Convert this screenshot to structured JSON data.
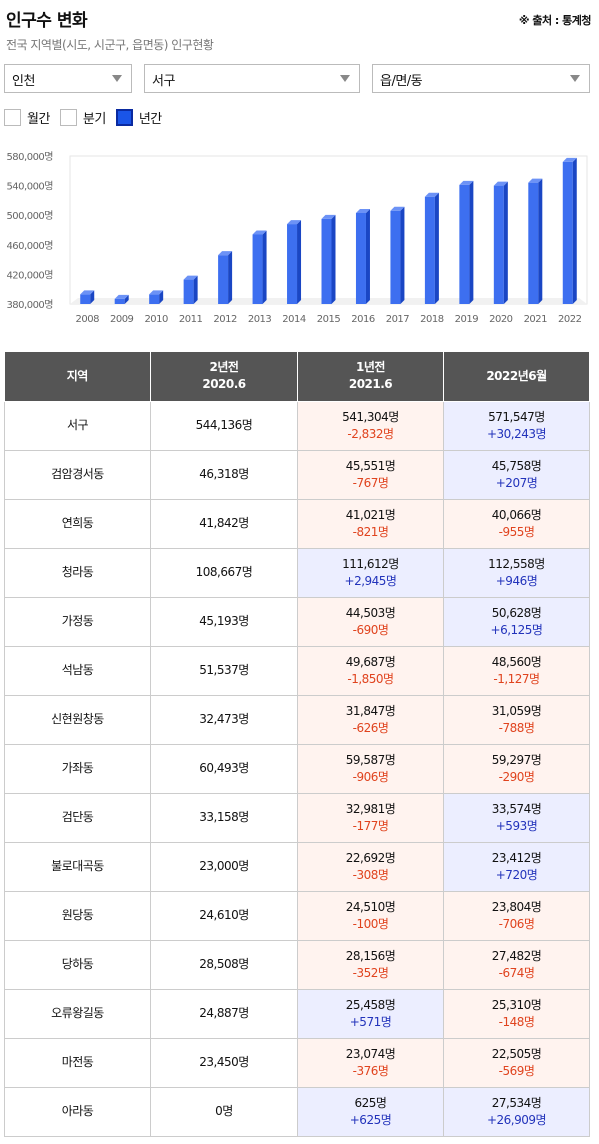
{
  "header": {
    "title": "인구수 변화",
    "source": "※ 출처 : 통계청",
    "subtitle": "전국 지역별(시도, 시군구, 읍면동) 인구현황"
  },
  "filters": {
    "sido": "인천",
    "sigungu": "서구",
    "eupmyeondong": "읍/면/동"
  },
  "period_options": [
    {
      "label": "월간",
      "checked": false
    },
    {
      "label": "분기",
      "checked": false
    },
    {
      "label": "년간",
      "checked": true
    }
  ],
  "colors": {
    "bar": "#3d6ff0",
    "bar_side": "#1a46c4",
    "bar_top": "#6c92f6",
    "decrease_bg": "#fff3ef",
    "increase_bg": "#eceeff",
    "decrease_text": "#e0431e",
    "increase_text": "#2233bb",
    "header_bg": "#555555"
  },
  "chart_data": {
    "type": "bar",
    "categories": [
      "2008",
      "2009",
      "2010",
      "2011",
      "2012",
      "2013",
      "2014",
      "2015",
      "2016",
      "2017",
      "2018",
      "2019",
      "2020",
      "2021",
      "2022"
    ],
    "values": [
      393000,
      387000,
      393000,
      413000,
      446000,
      474000,
      488000,
      495000,
      503000,
      506000,
      525000,
      541000,
      540000,
      544000,
      572000
    ],
    "ylim": [
      380000,
      580000
    ],
    "yticks": [
      "380,000명",
      "420,000명",
      "460,000명",
      "500,000명",
      "540,000명",
      "580,000명"
    ],
    "ytick_values": [
      380000,
      420000,
      460000,
      500000,
      540000,
      580000
    ],
    "grid": false
  },
  "table": {
    "headers": [
      {
        "line1": "지역",
        "line2": ""
      },
      {
        "line1": "2년전",
        "line2": "2020.6"
      },
      {
        "line1": "1년전",
        "line2": "2021.6"
      },
      {
        "line1": "2022년6월",
        "line2": ""
      }
    ],
    "rows": [
      {
        "name": "서구",
        "y2020": "544,136명",
        "y2021": "541,304명",
        "d2021": "-2,832명",
        "t2021": "dec",
        "y2022": "571,547명",
        "d2022": "+30,243명",
        "t2022": "inc"
      },
      {
        "name": "검암경서동",
        "y2020": "46,318명",
        "y2021": "45,551명",
        "d2021": "-767명",
        "t2021": "dec",
        "y2022": "45,758명",
        "d2022": "+207명",
        "t2022": "inc"
      },
      {
        "name": "연희동",
        "y2020": "41,842명",
        "y2021": "41,021명",
        "d2021": "-821명",
        "t2021": "dec",
        "y2022": "40,066명",
        "d2022": "-955명",
        "t2022": "dec"
      },
      {
        "name": "청라동",
        "y2020": "108,667명",
        "y2021": "111,612명",
        "d2021": "+2,945명",
        "t2021": "inc",
        "y2022": "112,558명",
        "d2022": "+946명",
        "t2022": "inc"
      },
      {
        "name": "가정동",
        "y2020": "45,193명",
        "y2021": "44,503명",
        "d2021": "-690명",
        "t2021": "dec",
        "y2022": "50,628명",
        "d2022": "+6,125명",
        "t2022": "inc"
      },
      {
        "name": "석남동",
        "y2020": "51,537명",
        "y2021": "49,687명",
        "d2021": "-1,850명",
        "t2021": "dec",
        "y2022": "48,560명",
        "d2022": "-1,127명",
        "t2022": "dec"
      },
      {
        "name": "신현원창동",
        "y2020": "32,473명",
        "y2021": "31,847명",
        "d2021": "-626명",
        "t2021": "dec",
        "y2022": "31,059명",
        "d2022": "-788명",
        "t2022": "dec"
      },
      {
        "name": "가좌동",
        "y2020": "60,493명",
        "y2021": "59,587명",
        "d2021": "-906명",
        "t2021": "dec",
        "y2022": "59,297명",
        "d2022": "-290명",
        "t2022": "dec"
      },
      {
        "name": "검단동",
        "y2020": "33,158명",
        "y2021": "32,981명",
        "d2021": "-177명",
        "t2021": "dec",
        "y2022": "33,574명",
        "d2022": "+593명",
        "t2022": "inc"
      },
      {
        "name": "불로대곡동",
        "y2020": "23,000명",
        "y2021": "22,692명",
        "d2021": "-308명",
        "t2021": "dec",
        "y2022": "23,412명",
        "d2022": "+720명",
        "t2022": "inc"
      },
      {
        "name": "원당동",
        "y2020": "24,610명",
        "y2021": "24,510명",
        "d2021": "-100명",
        "t2021": "dec",
        "y2022": "23,804명",
        "d2022": "-706명",
        "t2022": "dec"
      },
      {
        "name": "당하동",
        "y2020": "28,508명",
        "y2021": "28,156명",
        "d2021": "-352명",
        "t2021": "dec",
        "y2022": "27,482명",
        "d2022": "-674명",
        "t2022": "dec"
      },
      {
        "name": "오류왕길동",
        "y2020": "24,887명",
        "y2021": "25,458명",
        "d2021": "+571명",
        "t2021": "inc",
        "y2022": "25,310명",
        "d2022": "-148명",
        "t2022": "dec"
      },
      {
        "name": "마전동",
        "y2020": "23,450명",
        "y2021": "23,074명",
        "d2021": "-376명",
        "t2021": "dec",
        "y2022": "22,505명",
        "d2022": "-569명",
        "t2022": "dec"
      },
      {
        "name": "아라동",
        "y2020": "0명",
        "y2021": "625명",
        "d2021": "+625명",
        "t2021": "inc",
        "y2022": "27,534명",
        "d2022": "+26,909명",
        "t2022": "inc"
      }
    ]
  }
}
